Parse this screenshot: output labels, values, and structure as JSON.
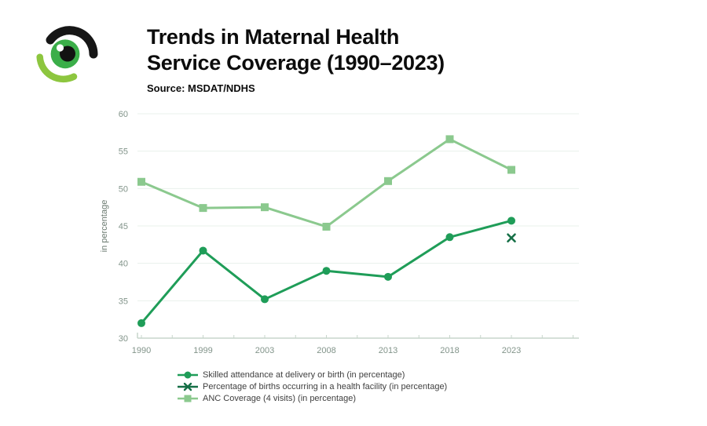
{
  "header": {
    "title_line1": "Trends in Maternal Health",
    "title_line2": "Service Coverage (1990–2023)",
    "source": "Source: MSDAT/NDHS"
  },
  "logo": {
    "arc_dark": "#161616",
    "arc_light": "#8dc63f",
    "iris": "#3bae49",
    "pupil": "#121212",
    "highlight": "#ffffff"
  },
  "chart_data": {
    "type": "line",
    "title": "Trends in Maternal Health Service Coverage (1990–2023)",
    "xlabel": "",
    "ylabel": "in percentage",
    "ylim": [
      30,
      60
    ],
    "yticks": [
      30,
      35,
      40,
      45,
      50,
      55,
      60
    ],
    "categories": [
      "1990",
      "1999",
      "2003",
      "2008",
      "2013",
      "2018",
      "2023"
    ],
    "grid": "horizontal-major-only",
    "legend_position": "bottom-left",
    "colors": {
      "grid": "#eaf1eb",
      "axis": "#c7d6cb",
      "tick_label": "#82948a",
      "axis_title": "#6b7a70"
    },
    "series": [
      {
        "name": "Skilled attendance at delivery or birth (in percentage)",
        "marker": "circle",
        "color": "#1f9d58",
        "values": [
          32.0,
          41.7,
          35.2,
          39.0,
          38.2,
          43.5,
          45.7
        ]
      },
      {
        "name": "Percentage of births occurring in a health facility (in percentage)",
        "marker": "x",
        "color": "#156f46",
        "values": [
          null,
          null,
          null,
          null,
          null,
          null,
          43.4
        ]
      },
      {
        "name": "ANC Coverage (4 visits) (in percentage)",
        "marker": "square",
        "color": "#8bc98e",
        "values": [
          50.9,
          47.4,
          47.5,
          44.9,
          51.0,
          56.6,
          52.5
        ]
      }
    ]
  }
}
